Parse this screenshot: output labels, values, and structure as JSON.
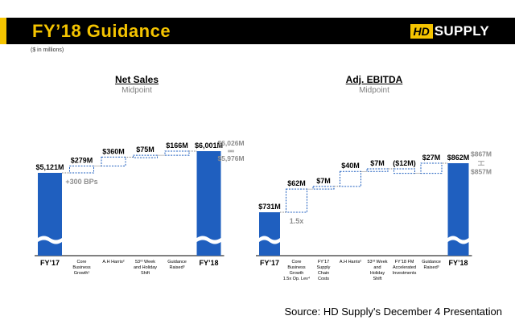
{
  "header": {
    "title": "FY’18 Guidance",
    "logo_hd": "HD",
    "logo_supply": "SUPPLY",
    "units_note": "($ in millions)"
  },
  "source": "Source: HD Supply's December 4 Presentation",
  "colors": {
    "bar": "#1f5fbf",
    "accent": "#f5c400",
    "range": "#a0a0a0",
    "range_text": "#8c8c8c"
  },
  "chart_data": [
    {
      "type": "waterfall",
      "title": "Net Sales",
      "subtitle": "Midpoint",
      "categories": [
        "FY’17",
        "Core Business Growth",
        "A.H Harris",
        "53rd Week and Holiday Shift",
        "Guidance Raised",
        "FY’18"
      ],
      "category_labels": [
        [
          "FY’17"
        ],
        [
          "Core",
          "Business",
          "Growth¹"
        ],
        [
          "A.H Harris²"
        ],
        [
          "53ʳᵈ Week",
          "and Holiday",
          "Shift"
        ],
        [
          "Guidance",
          "Raised³"
        ],
        [
          "FY’18"
        ]
      ],
      "values": [
        5121,
        279,
        360,
        75,
        166,
        6001
      ],
      "value_labels": [
        "$5,121M",
        "$279M",
        "$360M",
        "$75M",
        "$166M",
        "$6,001M"
      ],
      "kinds": [
        "total",
        "delta",
        "delta",
        "delta",
        "delta",
        "total"
      ],
      "annotations": [
        {
          "category": "Core Business Growth",
          "text": "+300 BPs"
        }
      ],
      "range": {
        "high": 6026,
        "low": 5976,
        "high_label": "$6,026M",
        "low_label": "$5,976M"
      }
    },
    {
      "type": "waterfall",
      "title": "Adj. EBITDA",
      "subtitle": "Midpoint",
      "categories": [
        "FY’17",
        "Core Business Growth",
        "FY’17 Supply Chain Costs",
        "A.H Harris",
        "53rd Week and Holiday Shift",
        "FY’18 FM Accelerated Investments",
        "Guidance Raised",
        "FY’18"
      ],
      "category_labels": [
        [
          "FY’17"
        ],
        [
          "Core",
          "Business",
          "Growth",
          "1.5x Op. Lev⁴"
        ],
        [
          "FY’17",
          "Supply",
          "Chain",
          "Costs"
        ],
        [
          "A.H Harris²"
        ],
        [
          "53ʳᵈ Week",
          "and",
          "Holiday",
          "Shift"
        ],
        [
          "FY’18 FM",
          "Accelerated",
          "Investments"
        ],
        [
          "Guidance",
          "Raised³"
        ],
        [
          "FY’18"
        ]
      ],
      "values": [
        731,
        62,
        7,
        40,
        7,
        -12,
        27,
        862
      ],
      "value_labels": [
        "$731M",
        "$62M",
        "$7M",
        "$40M",
        "$7M",
        "($12M)",
        "$27M",
        "$862M"
      ],
      "kinds": [
        "total",
        "delta",
        "delta",
        "delta",
        "delta",
        "delta",
        "delta",
        "total"
      ],
      "annotations": [
        {
          "category": "Core Business Growth",
          "text": "1.5x"
        }
      ],
      "range": {
        "high": 867,
        "low": 857,
        "high_label": "$867M",
        "low_label": "$857M"
      }
    }
  ]
}
